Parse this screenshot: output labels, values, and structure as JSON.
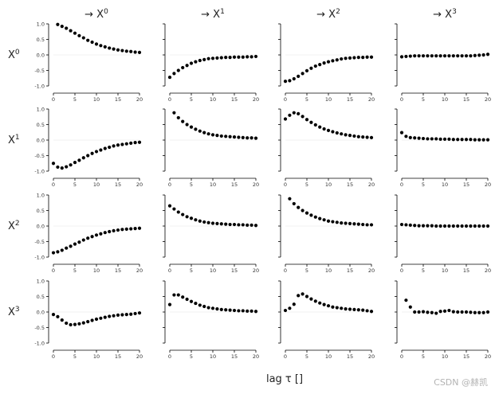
{
  "chart_data": {
    "type": "scatter",
    "layout": "4x4 grid of lagged dependency plots",
    "xlabel": "lag τ []",
    "x_ticks": [
      0,
      5,
      10,
      15,
      20
    ],
    "y_ticks": [
      "1.0",
      "0.5",
      "0.0",
      "-0.5",
      "-1.0"
    ],
    "ylim": [
      -1.0,
      1.0
    ],
    "xlim": [
      0,
      20
    ],
    "columns": [
      {
        "prefix": "→ X",
        "sup": "0"
      },
      {
        "prefix": "→ X",
        "sup": "1"
      },
      {
        "prefix": "→ X",
        "sup": "2"
      },
      {
        "prefix": "→ X",
        "sup": "3"
      }
    ],
    "rows": [
      {
        "prefix": "X",
        "sup": "0"
      },
      {
        "prefix": "X",
        "sup": "1"
      },
      {
        "prefix": "X",
        "sup": "2"
      },
      {
        "prefix": "X",
        "sup": "3"
      }
    ],
    "panels": [
      [
        {
          "start": 1,
          "values": [
            0.98,
            0.92,
            0.86,
            0.78,
            0.7,
            0.62,
            0.55,
            0.47,
            0.41,
            0.35,
            0.3,
            0.26,
            0.22,
            0.19,
            0.16,
            0.14,
            0.12,
            0.11,
            0.09,
            0.08
          ]
        },
        {
          "start": 0,
          "values": [
            -0.72,
            -0.6,
            -0.5,
            -0.41,
            -0.34,
            -0.27,
            -0.22,
            -0.18,
            -0.15,
            -0.12,
            -0.11,
            -0.1,
            -0.09,
            -0.08,
            -0.08,
            -0.07,
            -0.07,
            -0.07,
            -0.06,
            -0.06,
            -0.05
          ]
        },
        {
          "start": 0,
          "values": [
            -0.85,
            -0.83,
            -0.77,
            -0.69,
            -0.6,
            -0.51,
            -0.43,
            -0.36,
            -0.31,
            -0.26,
            -0.22,
            -0.19,
            -0.16,
            -0.13,
            -0.11,
            -0.1,
            -0.09,
            -0.08,
            -0.08,
            -0.07,
            -0.07
          ]
        },
        {
          "start": 0,
          "values": [
            -0.06,
            -0.05,
            -0.04,
            -0.03,
            -0.03,
            -0.03,
            -0.03,
            -0.03,
            -0.03,
            -0.03,
            -0.03,
            -0.03,
            -0.03,
            -0.03,
            -0.03,
            -0.03,
            -0.03,
            -0.02,
            -0.01,
            0.0,
            0.02
          ]
        }
      ],
      [
        {
          "start": 0,
          "values": [
            -0.75,
            -0.87,
            -0.9,
            -0.86,
            -0.8,
            -0.72,
            -0.65,
            -0.57,
            -0.5,
            -0.43,
            -0.37,
            -0.32,
            -0.27,
            -0.23,
            -0.19,
            -0.16,
            -0.14,
            -0.12,
            -0.1,
            -0.08,
            -0.07
          ]
        },
        {
          "start": 1,
          "values": [
            0.88,
            0.72,
            0.6,
            0.5,
            0.42,
            0.35,
            0.29,
            0.24,
            0.2,
            0.17,
            0.15,
            0.13,
            0.12,
            0.11,
            0.1,
            0.09,
            0.08,
            0.07,
            0.07,
            0.06
          ]
        },
        {
          "start": 0,
          "values": [
            0.68,
            0.8,
            0.88,
            0.85,
            0.76,
            0.66,
            0.57,
            0.49,
            0.42,
            0.36,
            0.31,
            0.27,
            0.23,
            0.2,
            0.17,
            0.15,
            0.13,
            0.11,
            0.1,
            0.09,
            0.08
          ]
        },
        {
          "start": 0,
          "values": [
            0.24,
            0.12,
            0.08,
            0.07,
            0.06,
            0.05,
            0.04,
            0.04,
            0.04,
            0.03,
            0.03,
            0.03,
            0.02,
            0.02,
            0.02,
            0.02,
            0.02,
            0.01,
            0.01,
            0.01,
            0.01
          ]
        }
      ],
      [
        {
          "start": 0,
          "values": [
            -0.86,
            -0.83,
            -0.78,
            -0.71,
            -0.65,
            -0.58,
            -0.52,
            -0.45,
            -0.39,
            -0.34,
            -0.29,
            -0.25,
            -0.21,
            -0.18,
            -0.15,
            -0.13,
            -0.11,
            -0.1,
            -0.09,
            -0.08,
            -0.07
          ]
        },
        {
          "start": 0,
          "values": [
            0.65,
            0.55,
            0.45,
            0.37,
            0.3,
            0.25,
            0.2,
            0.16,
            0.13,
            0.11,
            0.09,
            0.08,
            0.07,
            0.06,
            0.05,
            0.05,
            0.04,
            0.04,
            0.03,
            0.03,
            0.02
          ]
        },
        {
          "start": 1,
          "values": [
            0.88,
            0.72,
            0.6,
            0.5,
            0.42,
            0.35,
            0.29,
            0.24,
            0.2,
            0.16,
            0.14,
            0.12,
            0.1,
            0.09,
            0.08,
            0.07,
            0.06,
            0.05,
            0.04,
            0.04
          ]
        },
        {
          "start": 0,
          "values": [
            0.05,
            0.04,
            0.03,
            0.02,
            0.01,
            0.01,
            0.01,
            0.01,
            0.0,
            0.0,
            0.0,
            0.0,
            0.0,
            0.0,
            0.0,
            0.0,
            0.0,
            0.0,
            0.0,
            0.0,
            0.0
          ]
        }
      ],
      [
        {
          "start": 0,
          "values": [
            -0.08,
            -0.15,
            -0.26,
            -0.36,
            -0.41,
            -0.4,
            -0.38,
            -0.35,
            -0.31,
            -0.27,
            -0.23,
            -0.2,
            -0.17,
            -0.14,
            -0.12,
            -0.1,
            -0.09,
            -0.08,
            -0.07,
            -0.05,
            -0.03
          ]
        },
        {
          "start": 0,
          "values": [
            0.24,
            0.55,
            0.55,
            0.48,
            0.41,
            0.34,
            0.28,
            0.22,
            0.18,
            0.14,
            0.12,
            0.1,
            0.08,
            0.07,
            0.06,
            0.05,
            0.04,
            0.04,
            0.03,
            0.03,
            0.02
          ]
        },
        {
          "start": 0,
          "values": [
            0.05,
            0.12,
            0.25,
            0.53,
            0.58,
            0.5,
            0.42,
            0.35,
            0.29,
            0.24,
            0.2,
            0.16,
            0.14,
            0.12,
            0.1,
            0.09,
            0.08,
            0.07,
            0.06,
            0.04,
            0.02
          ]
        },
        {
          "start": 1,
          "values": [
            0.38,
            0.16,
            0.0,
            0.0,
            0.01,
            -0.01,
            -0.02,
            -0.04,
            0.02,
            0.03,
            0.05,
            0.01,
            0.0,
            0.0,
            0.0,
            -0.01,
            -0.02,
            -0.02,
            -0.02,
            0.0
          ]
        }
      ]
    ]
  },
  "watermark": "CSDN @赫凯"
}
